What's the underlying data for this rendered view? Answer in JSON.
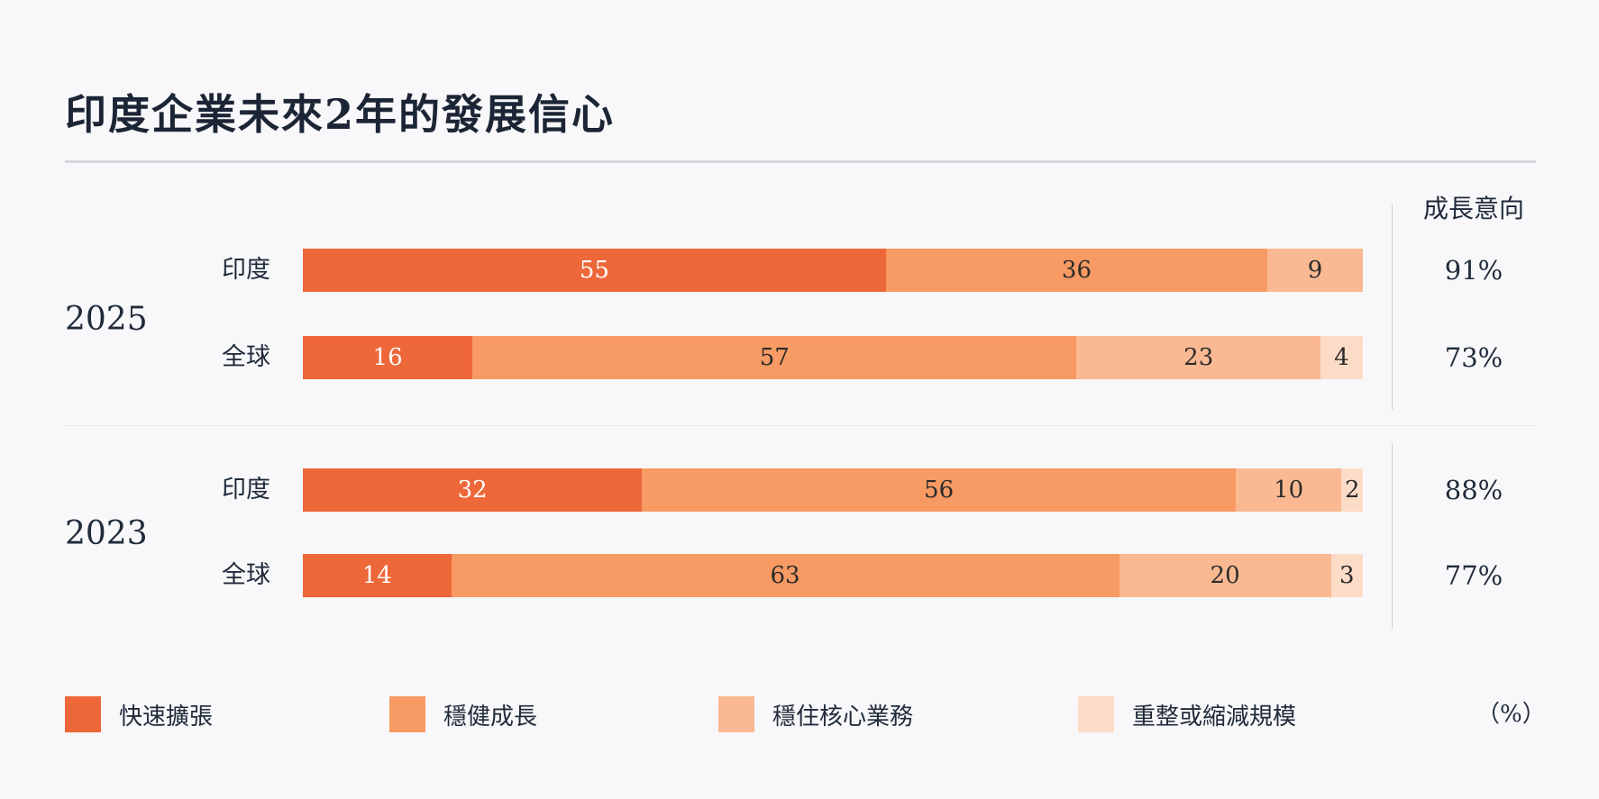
{
  "chart_data": {
    "type": "bar",
    "stacked": true,
    "orientation": "horizontal",
    "title": "印度企業未來2年的發展信心",
    "unit": "（%）",
    "growth_header": "成長意向",
    "series": [
      {
        "name": "快速擴張",
        "color": "#ee6739"
      },
      {
        "name": "穩健成長",
        "color": "#f79a63"
      },
      {
        "name": "穩住核心業務",
        "color": "#fab992"
      },
      {
        "name": "重整或縮減規模",
        "color": "#fcdcc7"
      }
    ],
    "groups": [
      {
        "year": "2025",
        "rows": [
          {
            "label": "印度",
            "values": [
              55,
              36,
              9
            ],
            "growth": "91%"
          },
          {
            "label": "全球",
            "values": [
              16,
              57,
              23,
              4
            ],
            "growth": "73%"
          }
        ]
      },
      {
        "year": "2023",
        "rows": [
          {
            "label": "印度",
            "values": [
              32,
              56,
              10,
              2
            ],
            "growth": "88%"
          },
          {
            "label": "全球",
            "values": [
              14,
              63,
              20,
              3
            ],
            "growth": "77%"
          }
        ]
      }
    ]
  }
}
